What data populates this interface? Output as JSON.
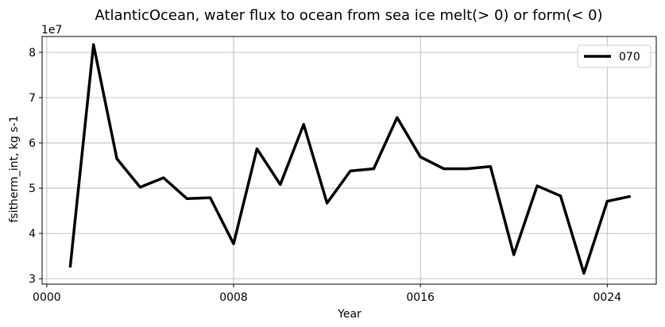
{
  "chart_data": {
    "type": "line",
    "title": "AtlanticOcean, water flux to ocean from sea ice melt(> 0) or form(< 0)",
    "xlabel": "Year",
    "ylabel": "fsitherm_int, kg s-1",
    "offset_label": "1e7",
    "x_ticks": [
      0,
      8,
      16,
      24
    ],
    "x_tick_labels": [
      "0000",
      "0008",
      "0016",
      "0024"
    ],
    "y_ticks": [
      3,
      4,
      5,
      6,
      7,
      8
    ],
    "y_tick_labels": [
      "3",
      "4",
      "5",
      "6",
      "7",
      "8"
    ],
    "xlim": [
      -0.2,
      26.1
    ],
    "ylim": [
      2.88,
      8.35
    ],
    "grid": true,
    "legend_position": "top-right",
    "series": [
      {
        "name": "070",
        "color": "#000000",
        "x": [
          1,
          2,
          3,
          4,
          5,
          6,
          7,
          8,
          9,
          10,
          11,
          12,
          13,
          14,
          15,
          16,
          17,
          18,
          19,
          20,
          21,
          22,
          23,
          24,
          25
        ],
        "values": [
          3.25,
          8.17,
          5.65,
          5.02,
          5.23,
          4.77,
          4.79,
          3.77,
          5.87,
          5.08,
          6.41,
          4.67,
          5.38,
          5.43,
          6.56,
          5.69,
          5.43,
          5.43,
          5.48,
          3.53,
          5.05,
          4.83,
          3.12,
          4.71,
          4.82
        ]
      }
    ]
  }
}
